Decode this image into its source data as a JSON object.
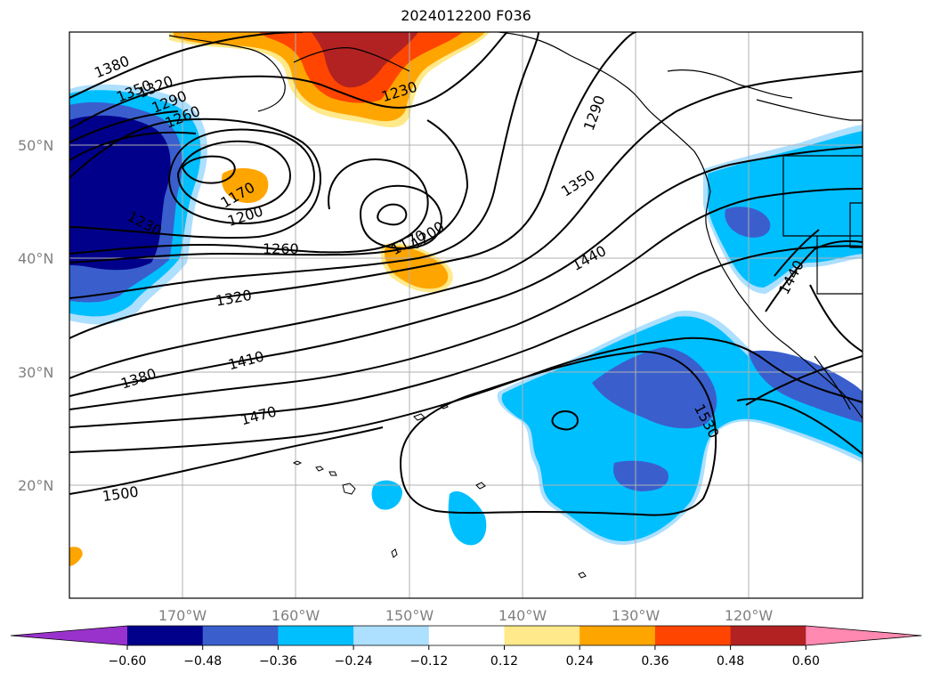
{
  "title": "2024012200 F036",
  "lat_labels": [
    "50°N",
    "40°N",
    "30°N",
    "20°N"
  ],
  "lon_labels": [
    "170°W",
    "160°W",
    "150°W",
    "140°W",
    "130°W",
    "120°W"
  ],
  "contour_labels": [
    "1380",
    "1350",
    "1320",
    "1290",
    "1260",
    "1230",
    "1170",
    "1200",
    "1230",
    "1170",
    "1200",
    "1260",
    "1320",
    "1380",
    "1410",
    "1470",
    "1500",
    "1290",
    "1350",
    "1440",
    "1440",
    "1530"
  ],
  "colorbar": {
    "colors": [
      "#9932CC",
      "#00008B",
      "#3A5FCD",
      "#00BFFF",
      "#ADDFFF",
      "#FFFFFF",
      "#FFE98A",
      "#FFA500",
      "#FF4500",
      "#B22222",
      "#FF89B0"
    ],
    "tick_labels": [
      "−0.60",
      "−0.48",
      "−0.36",
      "−0.24",
      "−0.12",
      "0.12",
      "0.24",
      "0.36",
      "0.48",
      "0.60"
    ]
  }
}
